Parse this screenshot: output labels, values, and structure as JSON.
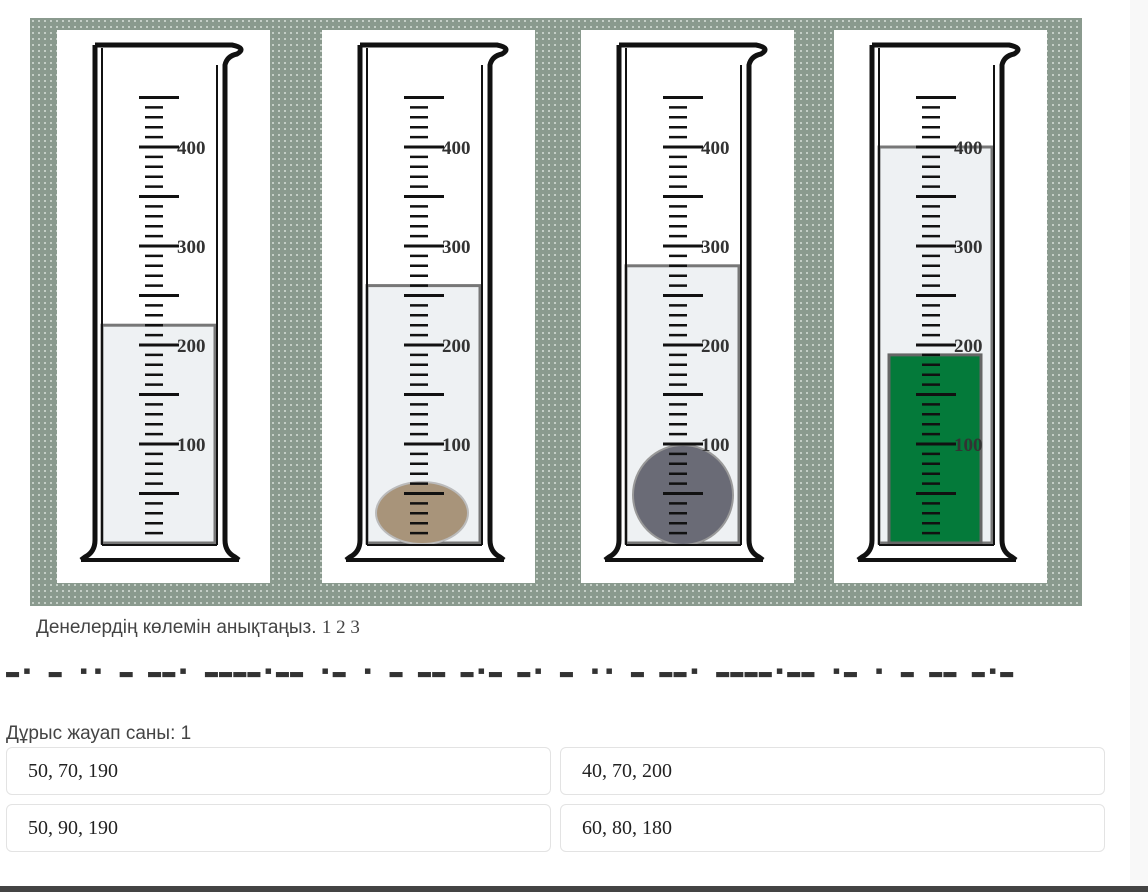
{
  "figure": {
    "scale_labels": [
      "100",
      "200",
      "300",
      "400"
    ],
    "cylinders": [
      {
        "level_ml": 220,
        "object": "none"
      },
      {
        "level_ml": 260,
        "object": "pebble",
        "object_color": "#a8947a"
      },
      {
        "level_ml": 280,
        "object": "ball",
        "object_color": "#6a6b76"
      },
      {
        "level_ml": 400,
        "object": "block",
        "object_color": "#047a3a"
      }
    ],
    "liquid_color": "#eef1f3"
  },
  "question": {
    "text": "Денелердің көлемін анықтаңыз.",
    "numbers": "1 2 3"
  },
  "garbled_text": "▬▪ ▬ ▪▪ ▬  ▬▬▪ ▬▬▬▬▪▬▬ ▪▬ ▪ ▬ ▬▬  ▬▪▬ ▬▪ ▬ ▪▪ ▬  ▬▬▪ ▬▬▬▬▪▬▬ ▪▬ ▪ ▬ ▬▬ ▬▪▬",
  "answer_count": "Дұрыс жауап саны: 1",
  "options": [
    "50, 70, 190",
    "40, 70, 200",
    "50, 90, 190",
    "60, 80, 180"
  ]
}
